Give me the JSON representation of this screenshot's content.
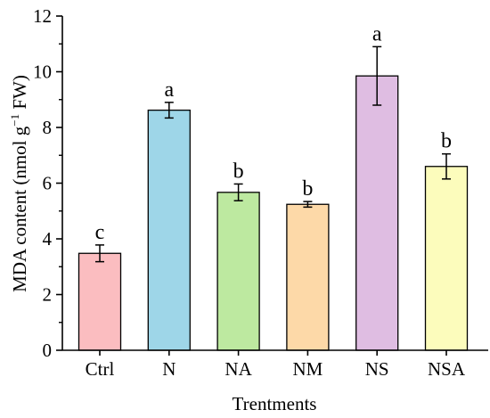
{
  "chart_data": {
    "type": "bar",
    "xlabel": "Trentments",
    "ylabel_main": "MDA content (nmol g",
    "ylabel_sup": "−1",
    "ylabel_tail": " FW)",
    "ylim": [
      0,
      12
    ],
    "yticks": [
      "0",
      "2",
      "4",
      "6",
      "8",
      "10",
      "12"
    ],
    "grid": false,
    "categories": [
      "Ctrl",
      "N",
      "NA",
      "NM",
      "NS",
      "NSA"
    ],
    "values": [
      3.48,
      8.62,
      5.67,
      5.24,
      9.85,
      6.6
    ],
    "errors": [
      0.3,
      0.28,
      0.3,
      0.1,
      1.05,
      0.45
    ],
    "letters": [
      "c",
      "a",
      "b",
      "b",
      "a",
      "b"
    ],
    "colors": [
      "#fbbdc0",
      "#9ed6e8",
      "#bde9a0",
      "#fdd9a8",
      "#dfbde2",
      "#fcfcbc"
    ]
  }
}
